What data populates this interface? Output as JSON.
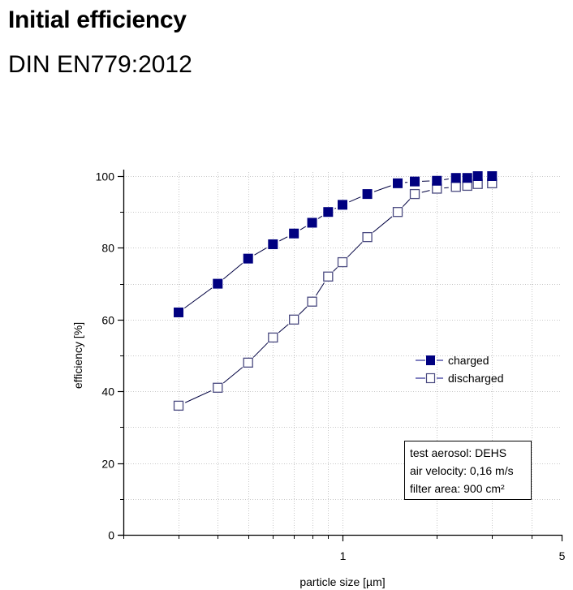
{
  "header": {
    "title": "Initial efficiency",
    "subtitle": "DIN EN779:2012"
  },
  "chart_data": {
    "type": "scatter",
    "title": "",
    "xlabel": "particle size [µm]",
    "ylabel": "efficiency [%]",
    "xscale": "log",
    "xlim": [
      0.2,
      5
    ],
    "ylim": [
      0,
      100
    ],
    "x_ticks_major": [
      1,
      5
    ],
    "x_tick_labels": [
      "1",
      "5"
    ],
    "x_ticks_minor": [
      0.3,
      0.4,
      0.5,
      0.6,
      0.7,
      0.8,
      0.9,
      2,
      3,
      4
    ],
    "y_ticks_major": [
      0,
      20,
      40,
      60,
      80,
      100
    ],
    "y_tick_labels": [
      "0",
      "20",
      "40",
      "60",
      "80",
      "100"
    ],
    "y_ticks_minor": [
      10,
      30,
      50,
      70,
      90
    ],
    "grid": true,
    "legend_position": "right-center",
    "x": [
      0.3,
      0.4,
      0.5,
      0.6,
      0.7,
      0.8,
      0.9,
      1.0,
      1.2,
      1.5,
      1.7,
      2.0,
      2.3,
      2.5,
      2.7,
      3.0
    ],
    "series": [
      {
        "name": "charged",
        "marker": "filled-square",
        "color": "#000080",
        "values": [
          62,
          70,
          77,
          81,
          84,
          87,
          90,
          92,
          95,
          98,
          98.5,
          98.7,
          99.5,
          99.5,
          100,
          100
        ]
      },
      {
        "name": "discharged",
        "marker": "open-square",
        "color": "#000080",
        "values": [
          36,
          41,
          48,
          55,
          60,
          65,
          72,
          76,
          83,
          90,
          95,
          96.5,
          97,
          97.3,
          97.8,
          98
        ]
      }
    ],
    "annotation": {
      "lines": [
        "test aerosol: DEHS",
        "air velocity: 0,16 m/s",
        "filter area: 900 cm²"
      ],
      "position": "bottom-right"
    }
  }
}
